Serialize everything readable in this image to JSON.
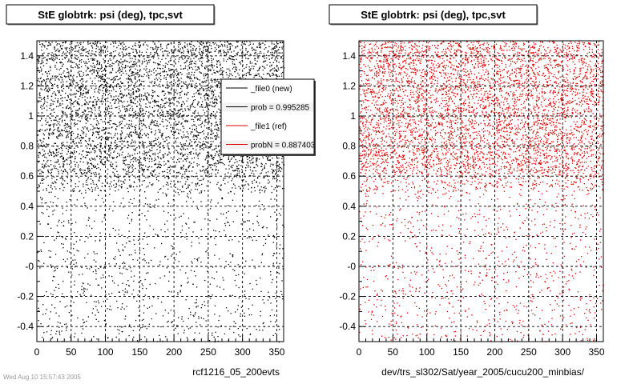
{
  "chart_data": [
    {
      "type": "scatter",
      "title": "StE globtrk: psi (deg), tpc,svt",
      "caption": "rcf1216_05_200evts",
      "xlim": [
        0,
        360
      ],
      "ylim": [
        -0.5,
        1.5
      ],
      "xticks": [
        "0",
        "50",
        "100",
        "150",
        "200",
        "250",
        "300",
        "350"
      ],
      "yticks": [
        "-0.4",
        "-0.2",
        "-0",
        "0.2",
        "0.4",
        "0.6",
        "0.8",
        "1",
        "1.2",
        "1.4"
      ],
      "grid": true,
      "density_regions": [
        {
          "y_range": [
            0.5,
            1.5
          ],
          "density": "high"
        },
        {
          "y_range": [
            -0.5,
            0.5
          ],
          "density": "low"
        }
      ],
      "series": [
        {
          "name": "_file0 (new)",
          "color": "#000000"
        }
      ],
      "legend": {
        "placement": "top-right",
        "entries": [
          {
            "label": "_file0 (new)",
            "color": "#000000"
          },
          {
            "label": "prob = 0.995285",
            "color": "#000000"
          },
          {
            "label": "_file1 (ref)",
            "color": "#e00000"
          },
          {
            "label": "probN = 0.887403",
            "color": "#e00000"
          }
        ]
      }
    },
    {
      "type": "scatter",
      "title": "StE globtrk: psi (deg), tpc,svt",
      "caption": "dev/trs_sl302/Sat/year_2005/cucu200_minbias/",
      "xlim": [
        0,
        360
      ],
      "ylim": [
        -0.5,
        1.5
      ],
      "xticks": [
        "0",
        "50",
        "100",
        "150",
        "200",
        "250",
        "300",
        "350"
      ],
      "yticks": [
        "-0.4",
        "-0.2",
        "-0",
        "0.2",
        "0.4",
        "0.6",
        "0.8",
        "1",
        "1.2",
        "1.4"
      ],
      "grid": true,
      "density_regions": [
        {
          "y_range": [
            0.5,
            1.5
          ],
          "density": "high"
        },
        {
          "y_range": [
            -0.5,
            0.5
          ],
          "density": "low"
        }
      ],
      "series": [
        {
          "name": "_file1 (ref)",
          "color": "#e00000"
        }
      ]
    }
  ],
  "footer": "Wed Aug 10 15:57:43 2005"
}
